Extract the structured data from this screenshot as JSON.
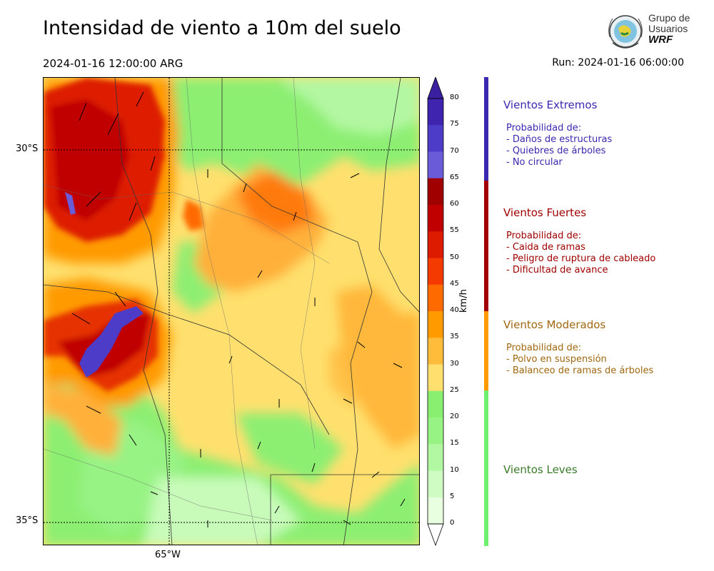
{
  "title": "Intensidad de viento a 10m del suelo",
  "valid_time": "2024-01-16 12:00:00 ARG",
  "run_time": "Run: 2024-01-16 06:00:00",
  "logo": {
    "line1": "Grupo de",
    "line2": "Usuarios",
    "line3": "WRF"
  },
  "map": {
    "lat_labels": [
      "30°S",
      "35°S"
    ],
    "lon_labels": [
      "65°W"
    ]
  },
  "colorbar": {
    "unit": "km/h",
    "ticks": [
      "80",
      "75",
      "70",
      "65",
      "60",
      "55",
      "50",
      "45",
      "40",
      "35",
      "30",
      "25",
      "20",
      "15",
      "10",
      "5",
      "0"
    ],
    "colors": [
      "#3f24b0",
      "#4d3cc8",
      "#6a5bd8",
      "#a00000",
      "#c00000",
      "#dd1b00",
      "#f53a00",
      "#ff6a00",
      "#ff9a00",
      "#ffbc3a",
      "#ffe06e",
      "#88ef70",
      "#98f385",
      "#b2f8a2",
      "#cffcc2",
      "#e8ffe0"
    ]
  },
  "categories": [
    {
      "name": "Vientos Extremos",
      "color": "#3a28b0",
      "bar": "#3a28b0",
      "head": "Probabilidad de:",
      "items": [
        "- Daños de estructuras",
        "- Quiebres de árboles",
        "- No circular"
      ]
    },
    {
      "name": "Vientos Fuertes",
      "color": "#a00000",
      "bar": "#a00000",
      "head": "Probabilidad de:",
      "items": [
        "- Caida de ramas",
        "- Peligro de ruptura de cableado",
        "- Dificultad de avance"
      ]
    },
    {
      "name": "Vientos Moderados",
      "color": "#a06810",
      "bar": "#ff9a00",
      "head": "Probabilidad de:",
      "items": [
        "- Polvo en suspensión",
        "- Balanceo de ramas de árboles"
      ]
    },
    {
      "name": "Vientos Leves",
      "color": "#3a7a2a",
      "bar": "#6ef06e"
    }
  ]
}
